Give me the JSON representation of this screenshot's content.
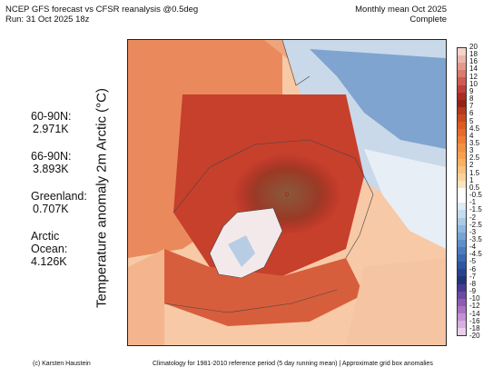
{
  "header": {
    "title": "NCEP GFS forecast vs CFSR reanalysis @0.5deg",
    "run": "Run: 31 Oct 2025 18z",
    "period": "Monthly mean Oct 2025",
    "status": "Complete"
  },
  "axis_label": "Temperature anomaly 2m Arctic (°C)",
  "regions": [
    {
      "name": "60-90N:",
      "value": "2.971K"
    },
    {
      "name": "66-90N:",
      "value": "3.893K"
    },
    {
      "name": "Greenland:",
      "value": "0.707K"
    },
    {
      "name": "Arctic Ocean:",
      "value": "4.126K"
    }
  ],
  "colorbar": {
    "labels": [
      "20",
      "18",
      "16",
      "14",
      "12",
      "10",
      "9",
      "8",
      "7",
      "6",
      "5",
      "4.5",
      "4",
      "3.5",
      "3",
      "2.5",
      "2",
      "1.5",
      "1",
      "0.5",
      "-0.5",
      "-1",
      "-1.5",
      "-2",
      "-2.5",
      "-3",
      "-3.5",
      "-4",
      "-4.5",
      "-5",
      "-6",
      "-7",
      "-8",
      "-9",
      "-10",
      "-12",
      "-14",
      "-16",
      "-18",
      "-20"
    ],
    "colors": [
      "#f5d3cc",
      "#ebb7ab",
      "#e39a8d",
      "#d97b6e",
      "#cd5d52",
      "#bf3f39",
      "#ab2c27",
      "#932318",
      "#b33a1c",
      "#c94b1d",
      "#dc5c21",
      "#e56c2a",
      "#ee7e35",
      "#f4913f",
      "#f7a14f",
      "#f9b163",
      "#fbc27c",
      "#fcd29a",
      "#fde3bc",
      "#ffffff",
      "#ffffff",
      "#dcebf6",
      "#c3dcef",
      "#a9cbe6",
      "#8fb8dd",
      "#76a4d3",
      "#6090c9",
      "#4c7cbe",
      "#3c68b0",
      "#2f55a0",
      "#26448e",
      "#20367a",
      "#4a3a92",
      "#6a4aa2",
      "#8c5cb3",
      "#a973c2",
      "#c390d1",
      "#d8afdf",
      "#e9d1ec"
    ]
  },
  "footer": {
    "credit": "(c) Karsten Haustein",
    "note": "Climatology for 1981-2010 reference period (5 day running mean) | Approximate grid box anomalies"
  }
}
